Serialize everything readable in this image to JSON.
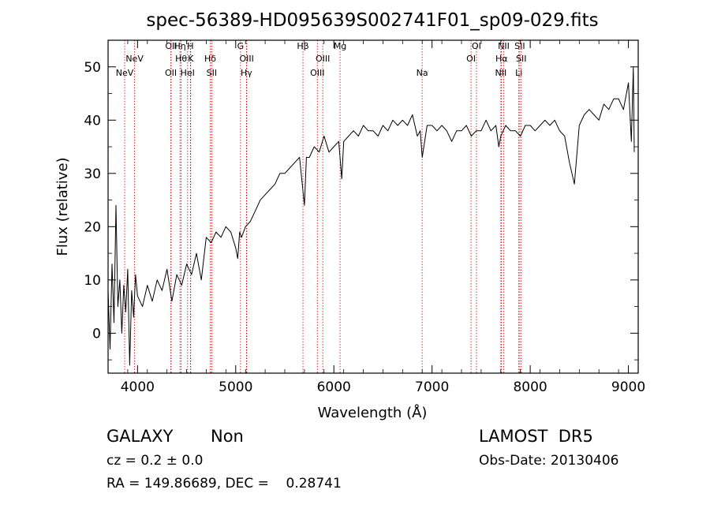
{
  "chart_data": {
    "type": "line",
    "title": "spec-56389-HD095639S002741F01_sp09-029.fits",
    "xlabel": "Wavelength (Å)",
    "ylabel": "Flux (relative)",
    "xlim": [
      3700,
      9100
    ],
    "ylim": [
      -7.5,
      55
    ],
    "x_ticks": [
      4000,
      5000,
      6000,
      7000,
      8000,
      9000
    ],
    "y_ticks": [
      0,
      10,
      20,
      30,
      40,
      50
    ],
    "grid": false,
    "line_color": "#000000",
    "marker_color": "#cc0000",
    "series": [
      {
        "x": [
          3700,
          3720,
          3740,
          3760,
          3780,
          3800,
          3820,
          3840,
          3860,
          3880,
          3900,
          3920,
          3940,
          3960,
          3980,
          4000,
          4050,
          4100,
          4150,
          4200,
          4250,
          4300,
          4350,
          4400,
          4450,
          4500,
          4550,
          4600,
          4650,
          4700,
          4750,
          4800,
          4850,
          4900,
          4950,
          5000,
          5020,
          5040,
          5060,
          5100,
          5150,
          5200,
          5250,
          5300,
          5350,
          5400,
          5450,
          5500,
          5550,
          5600,
          5650,
          5700,
          5720,
          5750,
          5800,
          5850,
          5900,
          5950,
          6000,
          6050,
          6080,
          6100,
          6150,
          6200,
          6250,
          6300,
          6350,
          6400,
          6450,
          6500,
          6550,
          6600,
          6650,
          6700,
          6750,
          6800,
          6850,
          6880,
          6900,
          6950,
          7000,
          7050,
          7100,
          7150,
          7200,
          7250,
          7300,
          7350,
          7400,
          7450,
          7500,
          7550,
          7600,
          7650,
          7680,
          7700,
          7750,
          7800,
          7850,
          7900,
          7950,
          8000,
          8050,
          8100,
          8150,
          8200,
          8250,
          8300,
          8350,
          8400,
          8450,
          8500,
          8550,
          8600,
          8650,
          8700,
          8750,
          8800,
          8850,
          8900,
          8950,
          9000,
          9030,
          9050,
          9060
        ],
        "y": [
          8,
          -3,
          13,
          2,
          24,
          5,
          10,
          0,
          9,
          4,
          12,
          -6,
          8,
          3,
          11,
          7,
          5,
          9,
          6,
          10,
          8,
          12,
          6,
          11,
          9,
          13,
          11,
          15,
          10,
          18,
          17,
          19,
          18,
          20,
          19,
          16,
          14,
          19,
          18,
          20,
          21,
          23,
          25,
          26,
          27,
          28,
          30,
          30,
          31,
          32,
          33,
          24,
          33,
          33,
          35,
          34,
          37,
          34,
          35,
          36,
          29,
          36,
          37,
          38,
          37,
          39,
          38,
          38,
          37,
          39,
          38,
          40,
          39,
          40,
          39,
          41,
          37,
          38,
          33,
          39,
          39,
          38,
          39,
          38,
          36,
          38,
          38,
          39,
          37,
          38,
          38,
          40,
          38,
          39,
          35,
          37,
          39,
          38,
          38,
          37,
          39,
          39,
          38,
          39,
          40,
          39,
          40,
          38,
          37,
          32,
          28,
          39,
          41,
          42,
          41,
          40,
          43,
          42,
          44,
          44,
          42,
          47,
          36,
          50,
          34
        ]
      }
    ],
    "lines": [
      {
        "label": "NeV",
        "x": 3869,
        "row": 3
      },
      {
        "label": "NeV",
        "x": 3970,
        "row": 2
      },
      {
        "label": "OII",
        "x": 4342,
        "row": 1
      },
      {
        "label": "Hη",
        "x": 4432,
        "row": 1
      },
      {
        "label": "H",
        "x": 4539,
        "row": 1
      },
      {
        "label": "Hθ",
        "x": 4444,
        "row": 2
      },
      {
        "label": "K",
        "x": 4542,
        "row": 2
      },
      {
        "label": "Hδ",
        "x": 4741,
        "row": 2
      },
      {
        "label": "OII",
        "x": 4339,
        "row": 3
      },
      {
        "label": "HeI",
        "x": 4510,
        "row": 3
      },
      {
        "label": "SII",
        "x": 4756,
        "row": 3
      },
      {
        "label": "G",
        "x": 5049,
        "row": 1
      },
      {
        "label": "OIII",
        "x": 5112,
        "row": 2
      },
      {
        "label": "Hγ",
        "x": 5109,
        "row": 3
      },
      {
        "label": "Hβ",
        "x": 5685,
        "row": 1
      },
      {
        "label": "OIII",
        "x": 5887,
        "row": 2
      },
      {
        "label": "OIII",
        "x": 5832,
        "row": 3
      },
      {
        "label": "Mg",
        "x": 6063,
        "row": 1
      },
      {
        "label": "Na",
        "x": 6899,
        "row": 3
      },
      {
        "label": "OI",
        "x": 7452,
        "row": 1
      },
      {
        "label": "OI",
        "x": 7397,
        "row": 2
      },
      {
        "label": "NII",
        "x": 7730,
        "row": 1
      },
      {
        "label": "Hα",
        "x": 7708,
        "row": 2
      },
      {
        "label": "NII",
        "x": 7701,
        "row": 3
      },
      {
        "label": "SII",
        "x": 7894,
        "row": 1
      },
      {
        "label": "SII",
        "x": 7909,
        "row": 2
      },
      {
        "label": "Li",
        "x": 7884,
        "row": 3
      }
    ]
  },
  "info": {
    "obj_class": "GALAXY",
    "subclass": "Non",
    "survey": "LAMOST  DR5",
    "redshift": "cz = 0.2 ± 0.0",
    "obs_date": "Obs-Date: 20130406",
    "coords": "RA = 149.86689, DEC =    0.28741"
  }
}
